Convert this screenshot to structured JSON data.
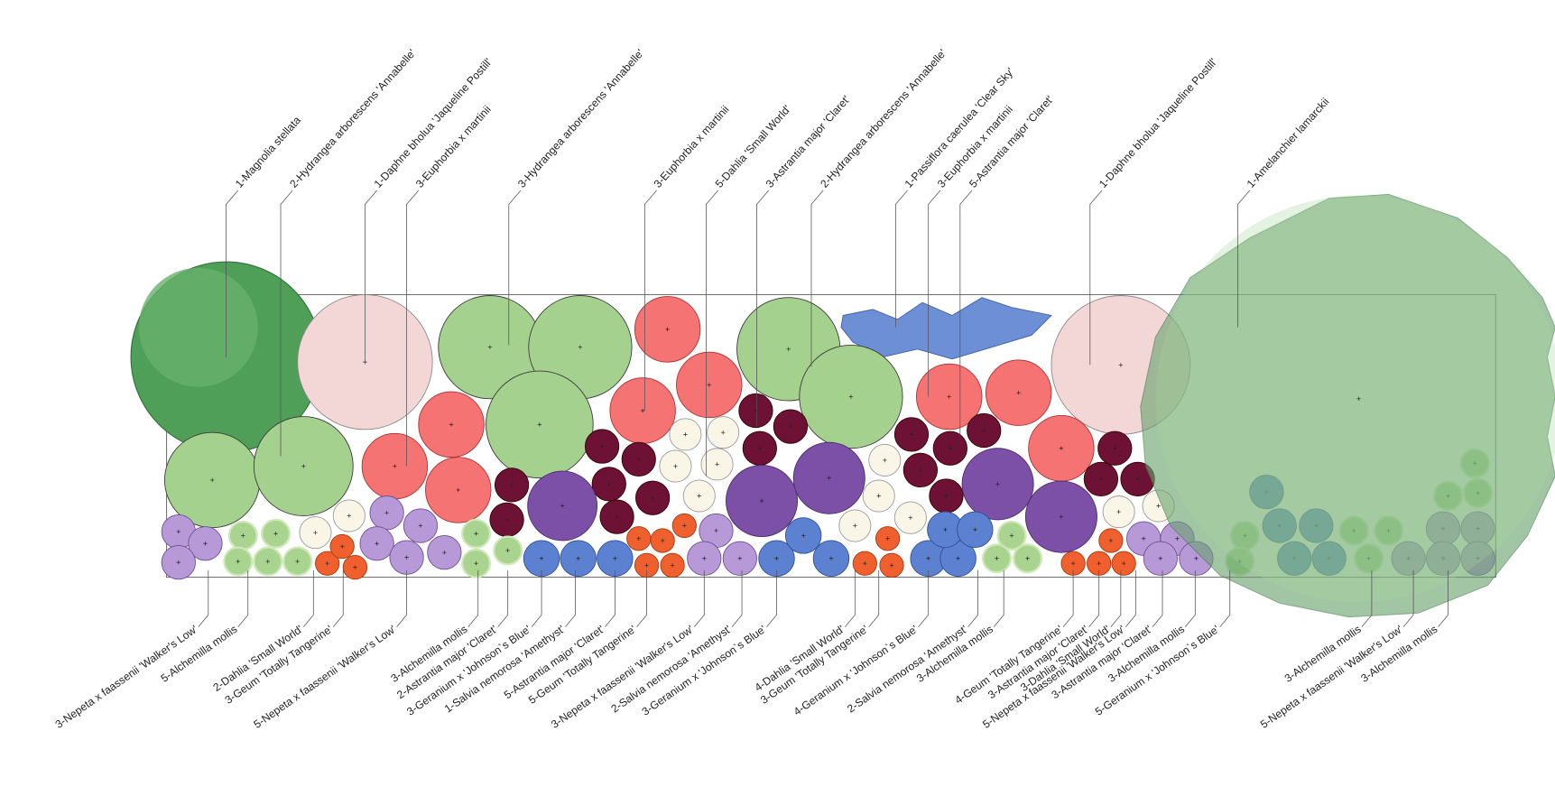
{
  "top_labels": [
    "1-Magnolia stellata",
    "2-Hydrangea arborescens 'Annabelle'",
    "1-Daphne bholua 'Jaqueline Postill'",
    "3-Euphorbia x martinii",
    "3-Hydrangea arborescens 'Annabelle'",
    "3-Euphorbia x martinii",
    "5-Dahlia 'Small World'",
    "3-Astrantia major 'Claret'",
    "2-Hydrangea arborescens 'Annabelle'",
    "1-Passiflora caerulea 'Clear Sky'",
    "3-Euphorbia x martinii",
    "5-Astrantia major 'Claret'",
    "1-Daphne bholua 'Jaqueline Postill'",
    "1-Amelanchier lamarckii"
  ],
  "bottom_labels": [
    "3-Nepeta x faassenii 'Walker's Low'",
    "5-Alchemilla mollis",
    "2-Dahlia 'Small World'",
    "3-Geum 'Totally Tangerine'",
    "5-Nepeta x faassenii 'Walker's Low'",
    "3-Alchemilla mollis",
    "2-Astrantia major 'Claret'",
    "3-Geranium x 'Johnson`s Blue'",
    "1-Salvia nemorosa 'Amethyst'",
    "5-Astrantia major 'Claret'",
    "5-Geum 'Totally Tangerine'",
    "3-Nepeta x faassenii 'Walker's Low'",
    "2-Salvia nemorosa 'Amethyst'",
    "3-Geranium x 'Johnson`s Blue'",
    "4-Dahlia 'Small World'",
    "3-Geum 'Totally Tangerine'",
    "4-Geranium x 'Johnson`s Blue'",
    "2-Salvia nemorosa 'Amethyst'",
    "3-Alchemilla mollis",
    "4-Geum 'Totally Tangerine'",
    "3-Astrantia major 'Claret'",
    "3-Dahlia 'Small World'",
    "5-Nepeta x faassenii 'Walker's Low'",
    "3-Astrantia major 'Claret'",
    "3-Alchemilla mollis",
    "5-Geranium x 'Johnson`s Blue'",
    "3-Alchemilla mollis",
    "5-Nepeta x faassenii 'Walker's Low'",
    "3-Alchemilla mollis"
  ]
}
